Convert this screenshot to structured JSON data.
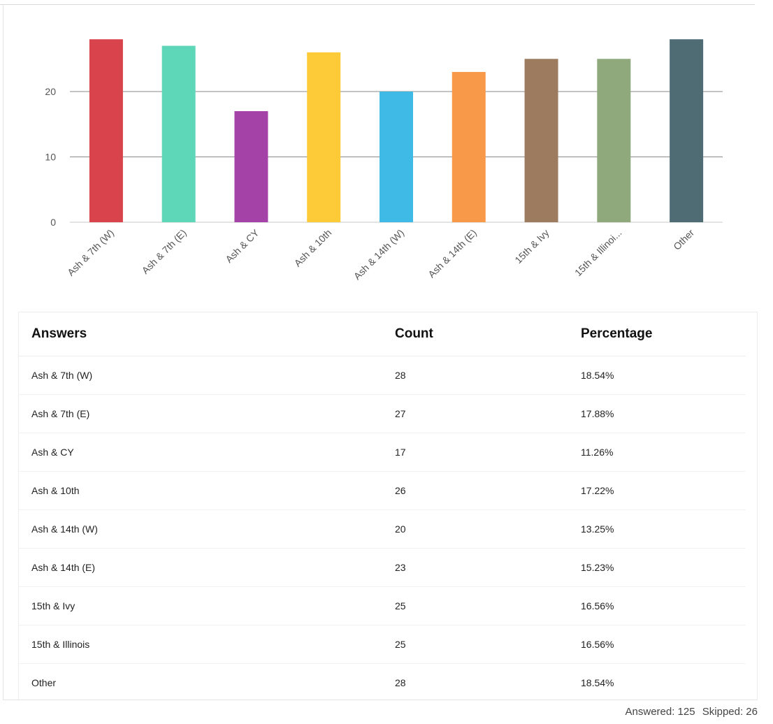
{
  "chart_data": {
    "type": "bar",
    "categories": [
      "Ash & 7th (W)",
      "Ash & 7th (E)",
      "Ash & CY",
      "Ash & 10th",
      "Ash & 14th (W)",
      "Ash & 14th (E)",
      "15th & Ivy",
      "15th & Illinoi...",
      "Other"
    ],
    "values": [
      28,
      27,
      17,
      26,
      20,
      23,
      25,
      25,
      28
    ],
    "colors": [
      "#d9434b",
      "#5ed6b8",
      "#a542a8",
      "#fccb37",
      "#3fb9e6",
      "#f8994a",
      "#9c7b5e",
      "#8fa87c",
      "#4f6c75"
    ],
    "yticks": [
      0,
      10,
      20
    ],
    "ylim": [
      0,
      28
    ],
    "grid": true,
    "title": "",
    "xlabel": "",
    "ylabel": ""
  },
  "table": {
    "headers": {
      "answers": "Answers",
      "count": "Count",
      "percentage": "Percentage"
    },
    "rows": [
      {
        "answer": "Ash & 7th (W)",
        "count": "28",
        "percentage": "18.54%"
      },
      {
        "answer": "Ash & 7th (E)",
        "count": "27",
        "percentage": "17.88%"
      },
      {
        "answer": "Ash & CY",
        "count": "17",
        "percentage": "11.26%"
      },
      {
        "answer": "Ash & 10th",
        "count": "26",
        "percentage": "17.22%"
      },
      {
        "answer": "Ash & 14th (W)",
        "count": "20",
        "percentage": "13.25%"
      },
      {
        "answer": "Ash & 14th (E)",
        "count": "23",
        "percentage": "15.23%"
      },
      {
        "answer": "15th & Ivy",
        "count": "25",
        "percentage": "16.56%"
      },
      {
        "answer": "15th & Illinois",
        "count": "25",
        "percentage": "16.56%"
      },
      {
        "answer": "Other",
        "count": "28",
        "percentage": "18.54%"
      }
    ]
  },
  "footer": {
    "answered": "Answered: 125",
    "skipped": "Skipped: 26"
  }
}
